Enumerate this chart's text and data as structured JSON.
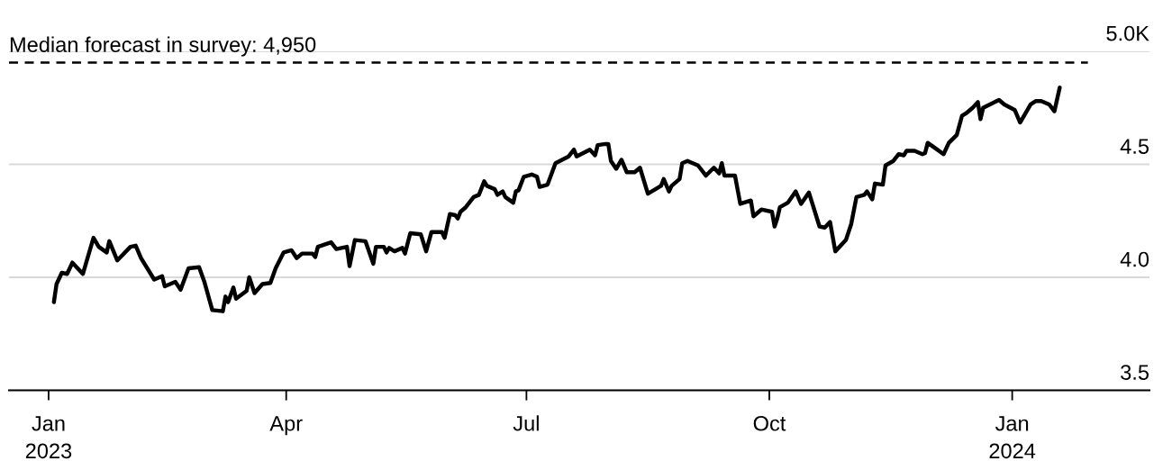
{
  "chart_data": {
    "type": "line",
    "x": [
      "2023-01-03",
      "2023-01-04",
      "2023-01-06",
      "2023-01-08",
      "2023-01-10",
      "2023-01-14",
      "2023-01-18",
      "2023-01-20",
      "2023-01-23",
      "2023-01-24",
      "2023-01-27",
      "2023-02-01",
      "2023-02-03",
      "2023-02-05",
      "2023-02-10",
      "2023-02-13",
      "2023-02-14",
      "2023-02-18",
      "2023-02-20",
      "2023-02-23",
      "2023-02-27",
      "2023-03-01",
      "2023-03-04",
      "2023-03-08",
      "2023-03-09",
      "2023-03-10",
      "2023-03-12",
      "2023-03-13",
      "2023-03-17",
      "2023-03-18",
      "2023-03-20",
      "2023-03-23",
      "2023-03-26",
      "2023-03-28",
      "2023-03-31",
      "2023-04-03",
      "2023-04-05",
      "2023-04-07",
      "2023-04-11",
      "2023-04-12",
      "2023-04-13",
      "2023-04-18",
      "2023-04-20",
      "2023-04-24",
      "2023-04-25",
      "2023-04-27",
      "2023-05-01",
      "2023-05-04",
      "2023-05-05",
      "2023-05-08",
      "2023-05-09",
      "2023-05-10",
      "2023-05-12",
      "2023-05-15",
      "2023-05-16",
      "2023-05-18",
      "2023-05-22",
      "2023-05-24",
      "2023-05-26",
      "2023-05-30",
      "2023-05-31",
      "2023-06-02",
      "2023-06-04",
      "2023-06-05",
      "2023-06-06",
      "2023-06-08",
      "2023-06-11",
      "2023-06-13",
      "2023-06-15",
      "2023-06-16",
      "2023-06-19",
      "2023-06-20",
      "2023-06-22",
      "2023-06-23",
      "2023-06-26",
      "2023-06-27",
      "2023-06-28",
      "2023-06-30",
      "2023-07-03",
      "2023-07-05",
      "2023-07-06",
      "2023-07-09",
      "2023-07-12",
      "2023-07-17",
      "2023-07-19",
      "2023-07-20",
      "2023-07-25",
      "2023-07-27",
      "2023-07-28",
      "2023-07-31",
      "2023-08-01",
      "2023-08-02",
      "2023-08-04",
      "2023-08-06",
      "2023-08-08",
      "2023-08-11",
      "2023-08-13",
      "2023-08-16",
      "2023-08-21",
      "2023-08-22",
      "2023-08-24",
      "2023-08-25",
      "2023-08-28",
      "2023-08-29",
      "2023-08-31",
      "2023-09-04",
      "2023-09-07",
      "2023-09-10",
      "2023-09-12",
      "2023-09-13",
      "2023-09-14",
      "2023-09-18",
      "2023-09-20",
      "2023-09-24",
      "2023-09-25",
      "2023-09-28",
      "2023-10-02",
      "2023-10-03",
      "2023-10-04",
      "2023-10-05",
      "2023-10-08",
      "2023-10-11",
      "2023-10-13",
      "2023-10-16",
      "2023-10-20",
      "2023-10-22",
      "2023-10-24",
      "2023-10-26",
      "2023-10-30",
      "2023-11-01",
      "2023-11-03",
      "2023-11-06",
      "2023-11-07",
      "2023-11-09",
      "2023-11-10",
      "2023-11-13",
      "2023-11-14",
      "2023-11-17",
      "2023-11-19",
      "2023-11-21",
      "2023-11-22",
      "2023-11-25",
      "2023-11-28",
      "2023-11-29",
      "2023-11-30",
      "2023-12-03",
      "2023-12-06",
      "2023-12-08",
      "2023-12-11",
      "2023-12-13",
      "2023-12-15",
      "2023-12-17",
      "2023-12-19",
      "2023-12-20",
      "2023-12-21",
      "2023-12-27",
      "2023-12-29",
      "2024-01-02",
      "2024-01-04",
      "2024-01-08",
      "2024-01-10",
      "2024-01-12",
      "2024-01-15",
      "2024-01-17",
      "2024-01-19"
    ],
    "series": [
      {
        "color": "#000000",
        "values": [
          3.89,
          3.97,
          4.02,
          4.015,
          4.065,
          4.015,
          4.175,
          4.135,
          4.11,
          4.16,
          4.075,
          4.135,
          4.14,
          4.085,
          3.99,
          4.005,
          3.96,
          3.98,
          3.945,
          4.04,
          4.045,
          3.98,
          3.855,
          3.85,
          3.915,
          3.89,
          3.955,
          3.905,
          3.94,
          4.0,
          3.93,
          3.97,
          3.975,
          4.04,
          4.11,
          4.12,
          4.085,
          4.105,
          4.105,
          4.09,
          4.135,
          4.155,
          4.125,
          4.135,
          4.05,
          4.165,
          4.16,
          4.06,
          4.135,
          4.135,
          4.11,
          4.13,
          4.115,
          4.13,
          4.105,
          4.195,
          4.19,
          4.115,
          4.2,
          4.2,
          4.175,
          4.28,
          4.275,
          4.26,
          4.29,
          4.31,
          4.355,
          4.365,
          4.425,
          4.405,
          4.39,
          4.365,
          4.38,
          4.355,
          4.33,
          4.38,
          4.385,
          4.445,
          4.455,
          4.445,
          4.4,
          4.41,
          4.505,
          4.535,
          4.565,
          4.535,
          4.565,
          4.54,
          4.585,
          4.59,
          4.59,
          4.515,
          4.48,
          4.52,
          4.465,
          4.465,
          4.485,
          4.37,
          4.405,
          4.435,
          4.38,
          4.405,
          4.435,
          4.505,
          4.515,
          4.495,
          4.45,
          4.485,
          4.46,
          4.505,
          4.45,
          4.45,
          4.325,
          4.34,
          4.27,
          4.3,
          4.29,
          4.225,
          4.26,
          4.31,
          4.33,
          4.38,
          4.325,
          4.375,
          4.225,
          4.22,
          4.245,
          4.115,
          4.165,
          4.235,
          4.355,
          4.365,
          4.38,
          4.345,
          4.415,
          4.41,
          4.495,
          4.515,
          4.545,
          4.54,
          4.56,
          4.56,
          4.545,
          4.55,
          4.595,
          4.57,
          4.545,
          4.595,
          4.63,
          4.715,
          4.73,
          4.75,
          4.775,
          4.7,
          4.75,
          4.785,
          4.765,
          4.74,
          4.685,
          4.765,
          4.78,
          4.78,
          4.765,
          4.735,
          4.84
        ]
      }
    ],
    "xlim": [
      "2022-12-17",
      "2024-02-22"
    ],
    "xticks": [
      {
        "value": "2023-01-01",
        "label": "Jan\n2023"
      },
      {
        "value": "2023-04-01",
        "label": "Apr"
      },
      {
        "value": "2023-07-01",
        "label": "Jul"
      },
      {
        "value": "2023-10-01",
        "label": "Oct"
      },
      {
        "value": "2024-01-01",
        "label": "Jan\n2024"
      }
    ],
    "ylim": [
      3.5,
      5.0
    ],
    "yticks": [
      {
        "value": 3.5,
        "label": "3.5"
      },
      {
        "value": 4.0,
        "label": "4.0"
      },
      {
        "value": 4.5,
        "label": "4.5"
      },
      {
        "value": 5.0,
        "label": "5.0K"
      }
    ],
    "grid": "y",
    "line_style": "solid",
    "ref_lines": [
      {
        "axis": "y",
        "value": 4.95,
        "label": "Median forecast in survey: 4,950",
        "color": "#000000",
        "line_style": "dashed"
      }
    ]
  }
}
